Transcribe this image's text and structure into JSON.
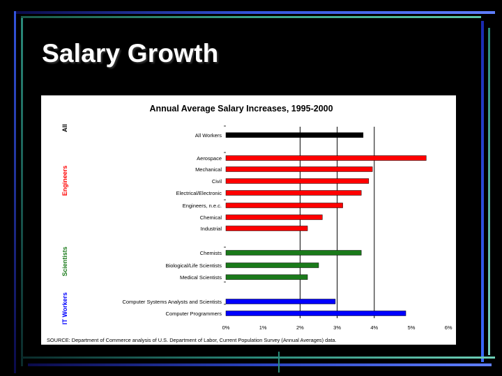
{
  "slide": {
    "title": "Salary Growth"
  },
  "colors": {
    "background": "#000000",
    "panel": "#ffffff",
    "all": "#000000",
    "engineers": "#ff0000",
    "scientists": "#1a7a1a",
    "it_workers": "#0000ff"
  },
  "chart_data": {
    "type": "bar",
    "orientation": "horizontal",
    "title": "Annual Average Salary Increases, 1995-2000",
    "xlabel": "",
    "ylabel": "",
    "xlim": [
      0,
      6
    ],
    "x_ticks": [
      "0%",
      "1%",
      "2%",
      "3%",
      "4%",
      "5%",
      "6%"
    ],
    "grid": "vertical lines at 2%, 3%, 4%",
    "groups": [
      {
        "name": "All",
        "color": "#000000",
        "categories": [
          "All Workers"
        ],
        "values": [
          3.7
        ]
      },
      {
        "name": "Engineers",
        "color": "#ff0000",
        "categories": [
          "Aerospace",
          "Mechanical",
          "Civil",
          "Electrical/Electronic",
          "Engineers, n.e.c.",
          "Chemical",
          "Industrial"
        ],
        "values": [
          5.4,
          3.95,
          3.85,
          3.65,
          3.15,
          2.6,
          2.2
        ]
      },
      {
        "name": "Scientists",
        "color": "#1a7a1a",
        "categories": [
          "Chemists",
          "Biological/Life Scientists",
          "Medical Scientists"
        ],
        "values": [
          3.65,
          2.5,
          2.2
        ]
      },
      {
        "name": "IT Workers",
        "color": "#0000ff",
        "categories": [
          "Computer Systems Analysts and Scientists",
          "Computer Programmers"
        ],
        "values": [
          2.95,
          4.85
        ]
      }
    ],
    "source": "SOURCE: Department of Commerce analysis of U.S. Department of Labor, Current Population Survey (Annual Averages) data."
  }
}
